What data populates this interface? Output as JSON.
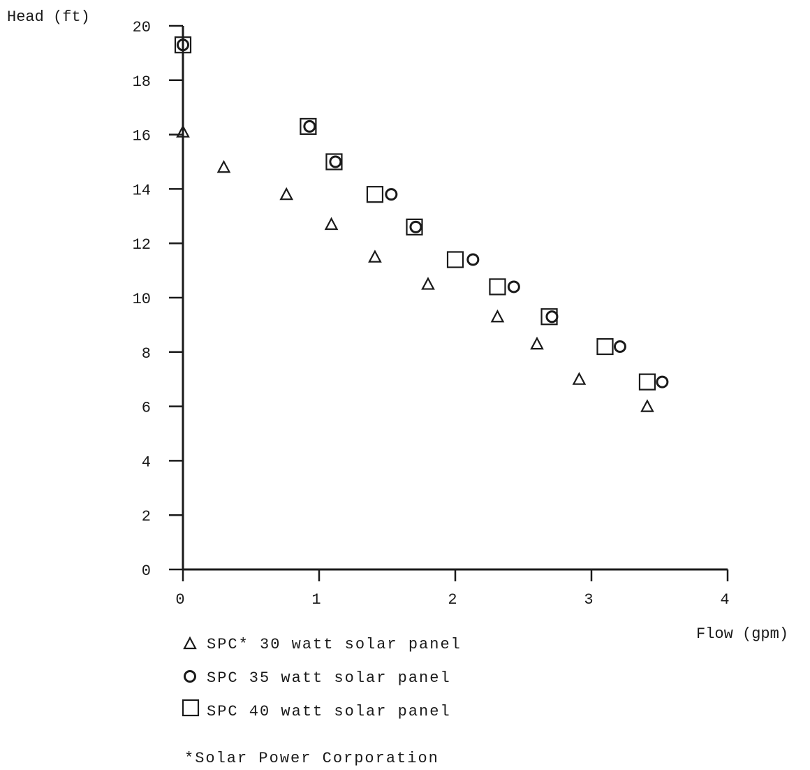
{
  "chart_data": {
    "type": "scatter",
    "xlabel": "Flow (gpm)",
    "ylabel": "Head (ft)",
    "xlim": [
      0,
      4
    ],
    "ylim": [
      0,
      20
    ],
    "x_ticks": [
      "0",
      "1",
      "2",
      "3",
      "4"
    ],
    "y_ticks": [
      "0",
      "2",
      "4",
      "6",
      "8",
      "10",
      "12",
      "14",
      "16",
      "18",
      "20"
    ],
    "grid": false,
    "legend_position": "bottom-left",
    "series": [
      {
        "name": "SPC* 30 watt solar panel",
        "marker": "triangle",
        "points": [
          [
            0.0,
            16.1
          ],
          [
            0.3,
            14.8
          ],
          [
            0.76,
            13.8
          ],
          [
            1.09,
            12.7
          ],
          [
            1.41,
            11.5
          ],
          [
            1.8,
            10.5
          ],
          [
            2.31,
            9.3
          ],
          [
            2.6,
            8.3
          ],
          [
            2.91,
            7.0
          ],
          [
            3.41,
            6.0
          ]
        ]
      },
      {
        "name": "SPC 35 watt solar panel",
        "marker": "circle",
        "points": [
          [
            0.0,
            19.3
          ],
          [
            0.93,
            16.3
          ],
          [
            1.12,
            15.0
          ],
          [
            1.53,
            13.8
          ],
          [
            1.71,
            12.6
          ],
          [
            2.13,
            11.4
          ],
          [
            2.43,
            10.4
          ],
          [
            2.71,
            9.3
          ],
          [
            3.21,
            8.2
          ],
          [
            3.52,
            6.9
          ]
        ]
      },
      {
        "name": "SPC 40 watt solar panel",
        "marker": "square",
        "points": [
          [
            0.0,
            19.3
          ],
          [
            0.92,
            16.3
          ],
          [
            1.11,
            15.0
          ],
          [
            1.41,
            13.8
          ],
          [
            1.7,
            12.6
          ],
          [
            2.0,
            11.4
          ],
          [
            2.31,
            10.4
          ],
          [
            2.69,
            9.3
          ],
          [
            3.1,
            8.2
          ],
          [
            3.41,
            6.9
          ]
        ]
      }
    ],
    "footnote": "*Solar Power Corporation"
  }
}
